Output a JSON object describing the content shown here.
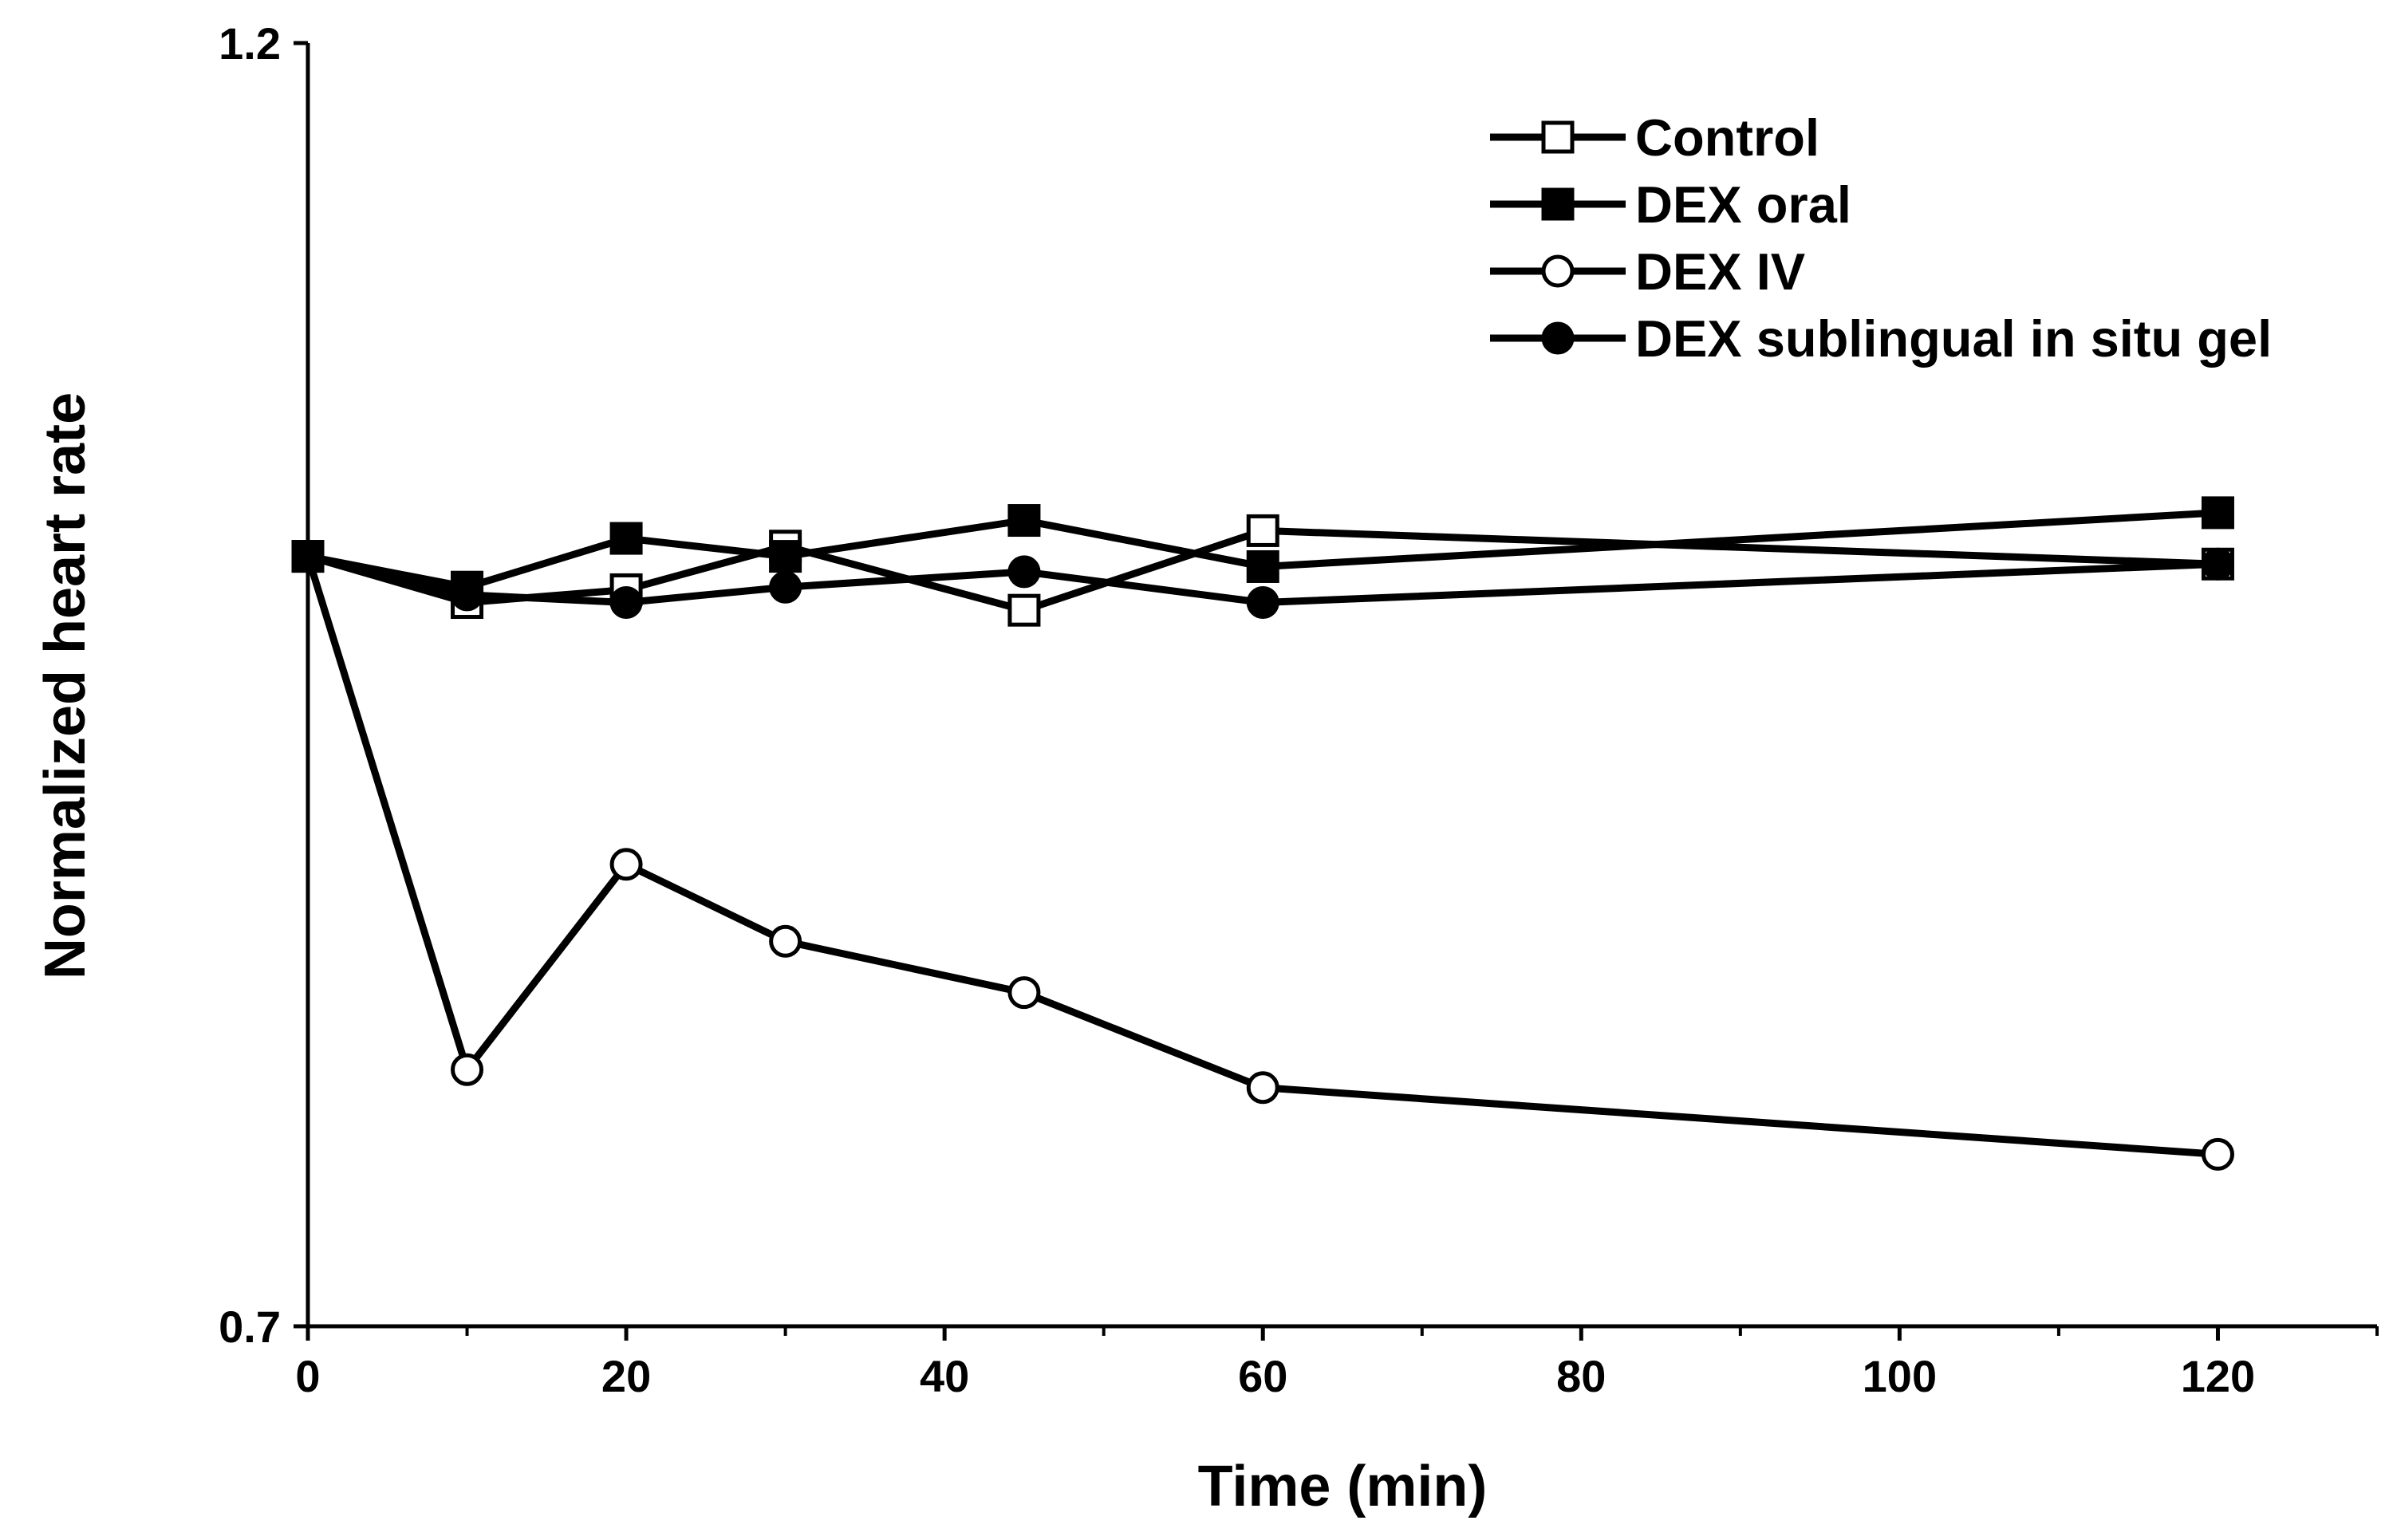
{
  "chart_data": {
    "type": "line",
    "title": "",
    "xlabel": "Time (min)",
    "ylabel": "Normalized heart rate",
    "xlim": [
      0,
      130
    ],
    "ylim": [
      0.7,
      1.2
    ],
    "x_ticks": [
      0,
      20,
      40,
      60,
      80,
      100,
      120
    ],
    "x_tick_labels": [
      "0",
      "20",
      "40",
      "60",
      "80",
      "100",
      "120"
    ],
    "y_ticks": [
      0.7,
      1.2
    ],
    "y_tick_labels": [
      "0.7",
      "1.2"
    ],
    "x": [
      0,
      10,
      20,
      30,
      45,
      60,
      120
    ],
    "grid": false,
    "legend_position": "top-right",
    "series": [
      {
        "name": "Control",
        "marker": "square-open",
        "values": [
          1.0,
          0.982,
          0.987,
          1.004,
          0.979,
          1.01,
          0.997
        ]
      },
      {
        "name": "DEX oral",
        "marker": "square-filled",
        "values": [
          1.0,
          0.988,
          1.007,
          1.0,
          1.014,
          0.996,
          1.017
        ]
      },
      {
        "name": "DEX IV",
        "marker": "circle-open",
        "values": [
          1.0,
          0.8,
          0.88,
          0.85,
          0.83,
          0.793,
          0.767
        ]
      },
      {
        "name": "DEX sublingual in situ gel",
        "marker": "circle-filled",
        "values": [
          1.0,
          0.985,
          0.982,
          0.988,
          0.994,
          0.982,
          0.997
        ]
      }
    ]
  },
  "colors": {
    "ink": "#000000",
    "background": "#ffffff"
  }
}
